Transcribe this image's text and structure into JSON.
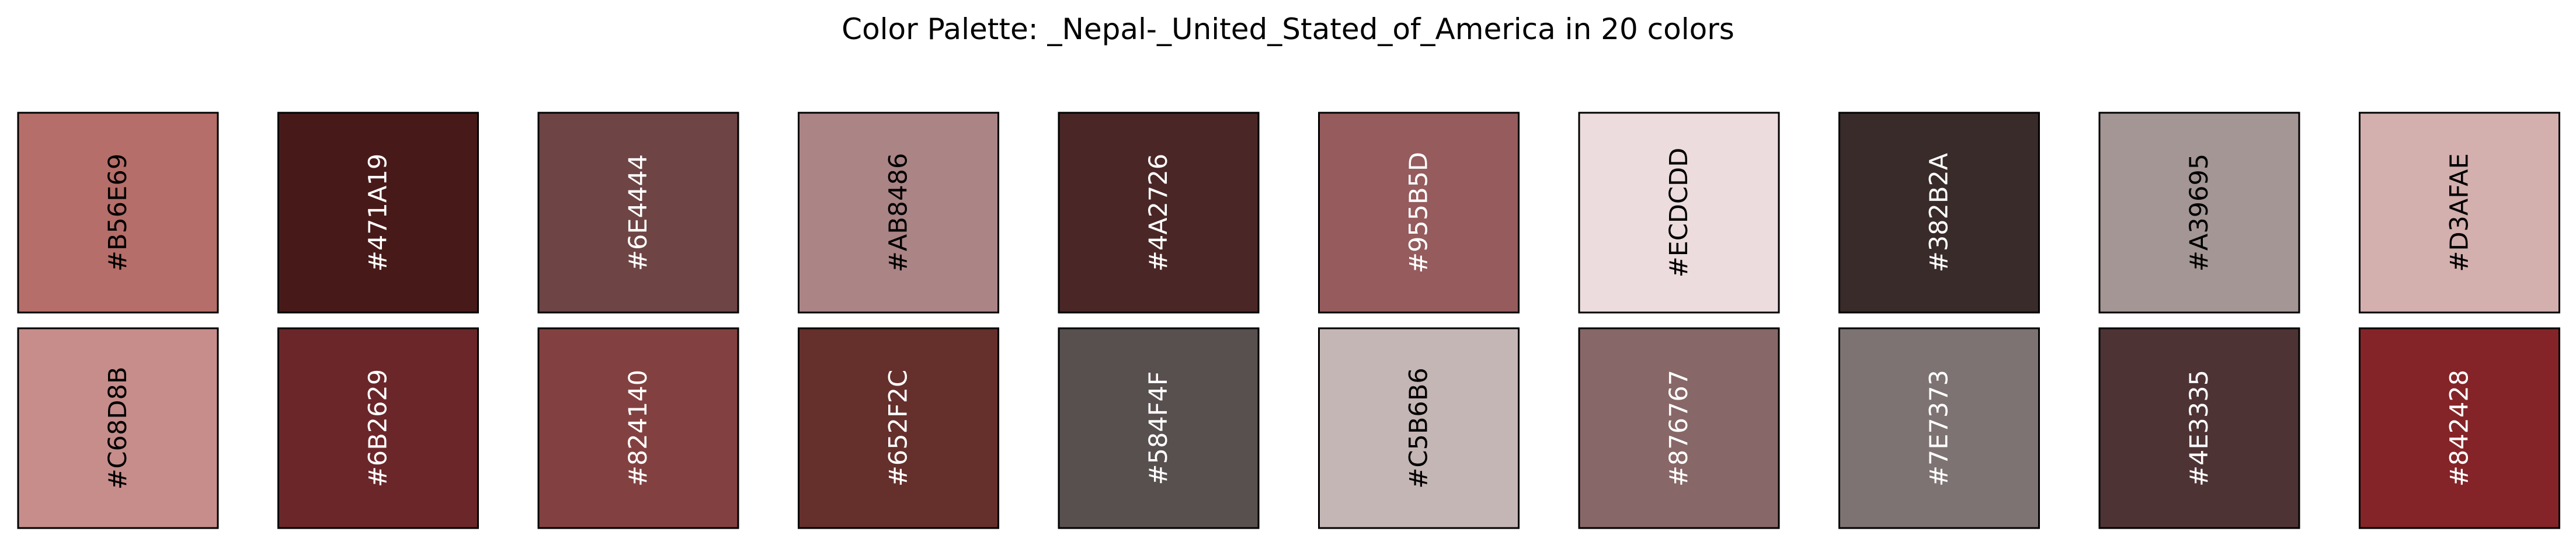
{
  "chart_data": {
    "type": "table",
    "title": "Color Palette: _Nepal-_United_Stated_of_America in 20 colors",
    "rows": 2,
    "columns": 10,
    "colors": [
      {
        "hex": "#B56E69",
        "label": "#B56E69",
        "text_color": "#000000"
      },
      {
        "hex": "#471A19",
        "label": "#471A19",
        "text_color": "#ffffff"
      },
      {
        "hex": "#6E4444",
        "label": "#6E4444",
        "text_color": "#ffffff"
      },
      {
        "hex": "#AB8486",
        "label": "#AB8486",
        "text_color": "#000000"
      },
      {
        "hex": "#4A2726",
        "label": "#4A2726",
        "text_color": "#ffffff"
      },
      {
        "hex": "#955B5D",
        "label": "#955B5D",
        "text_color": "#ffffff"
      },
      {
        "hex": "#ECDCDD",
        "label": "#ECDCDD",
        "text_color": "#000000"
      },
      {
        "hex": "#382B2A",
        "label": "#382B2A",
        "text_color": "#ffffff"
      },
      {
        "hex": "#A39695",
        "label": "#A39695",
        "text_color": "#000000"
      },
      {
        "hex": "#D3AFAE",
        "label": "#D3AFAE",
        "text_color": "#000000"
      },
      {
        "hex": "#C68D8B",
        "label": "#C68D8B",
        "text_color": "#000000"
      },
      {
        "hex": "#6B2629",
        "label": "#6B2629",
        "text_color": "#ffffff"
      },
      {
        "hex": "#824140",
        "label": "#824140",
        "text_color": "#ffffff"
      },
      {
        "hex": "#652F2C",
        "label": "#652F2C",
        "text_color": "#ffffff"
      },
      {
        "hex": "#584F4F",
        "label": "#584F4F",
        "text_color": "#ffffff"
      },
      {
        "hex": "#C5B6B6",
        "label": "#C5B6B6",
        "text_color": "#000000"
      },
      {
        "hex": "#876767",
        "label": "#876767",
        "text_color": "#ffffff"
      },
      {
        "hex": "#7E7373",
        "label": "#7E7373",
        "text_color": "#ffffff"
      },
      {
        "hex": "#4E3335",
        "label": "#4E3335",
        "text_color": "#ffffff"
      },
      {
        "hex": "#842428",
        "label": "#842428",
        "text_color": "#ffffff"
      }
    ]
  }
}
